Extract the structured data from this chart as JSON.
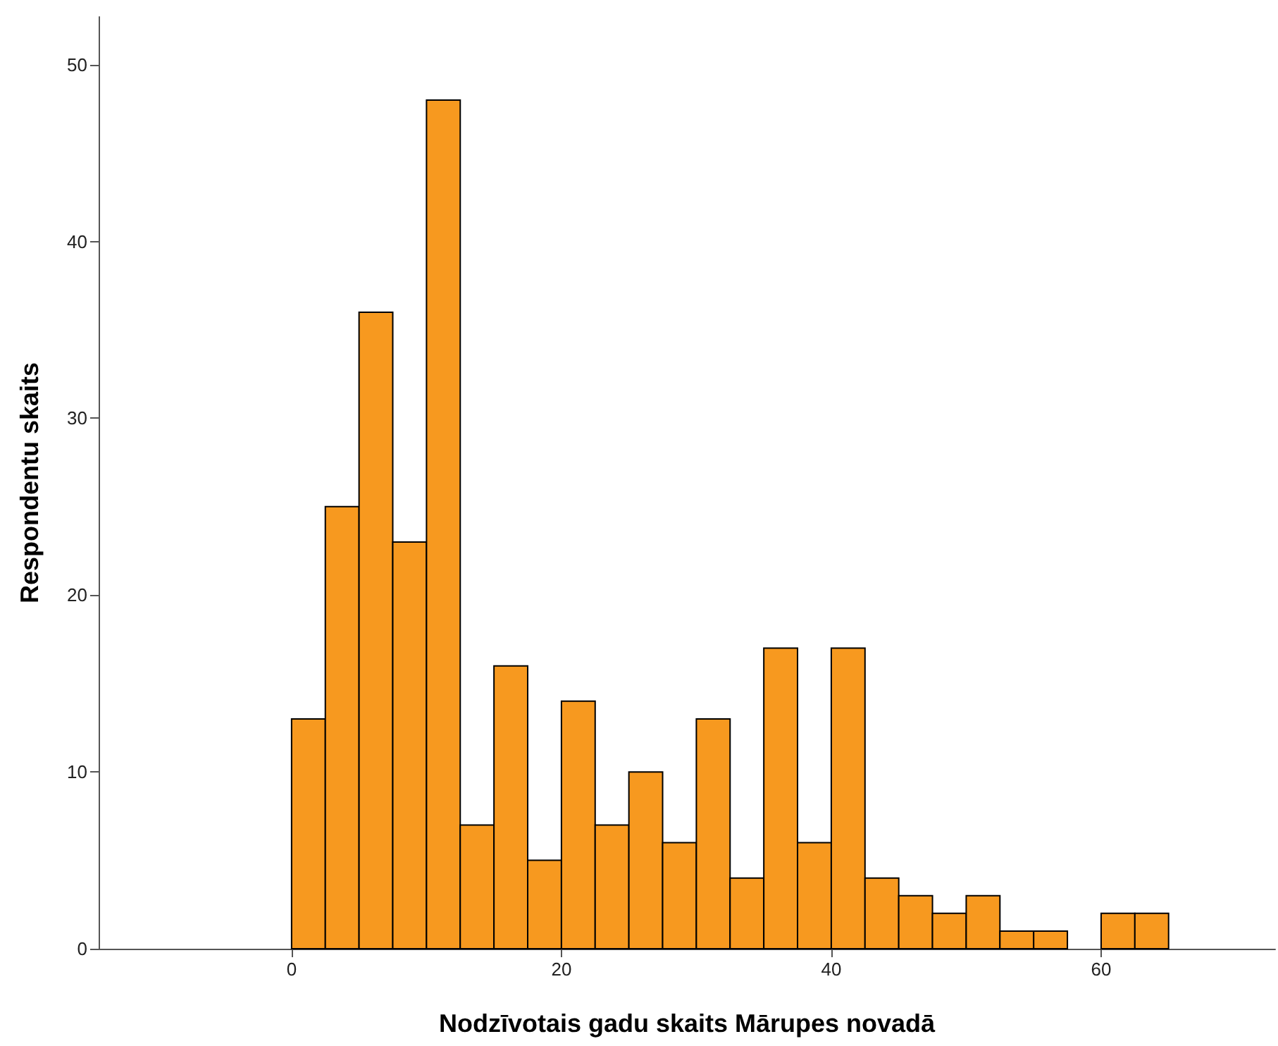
{
  "chart_data": {
    "type": "histogram",
    "xlabel": "Nodzīvotais gadu skaits Mārupes novadā",
    "ylabel": "Respondentu skaits",
    "bins": [
      0,
      2.5,
      5,
      7.5,
      10,
      12.5,
      15,
      17.5,
      20,
      22.5,
      25,
      27.5,
      30,
      32.5,
      35,
      37.5,
      40,
      42.5,
      45,
      47.5,
      50,
      52.5,
      55,
      57.5,
      60,
      62.5,
      65
    ],
    "values": [
      13,
      25,
      36,
      23,
      48,
      7,
      16,
      5,
      14,
      7,
      10,
      6,
      13,
      4,
      17,
      6,
      17,
      4,
      3,
      2,
      3,
      1,
      1,
      0,
      2,
      2
    ],
    "color": "#f7991f",
    "xlim": [
      -14.3,
      72.9
    ],
    "xticks": [
      0,
      20,
      40,
      60
    ],
    "ylim": [
      0,
      52.7
    ],
    "yticks": [
      0,
      10,
      20,
      30,
      40,
      50
    ],
    "grid": false
  }
}
